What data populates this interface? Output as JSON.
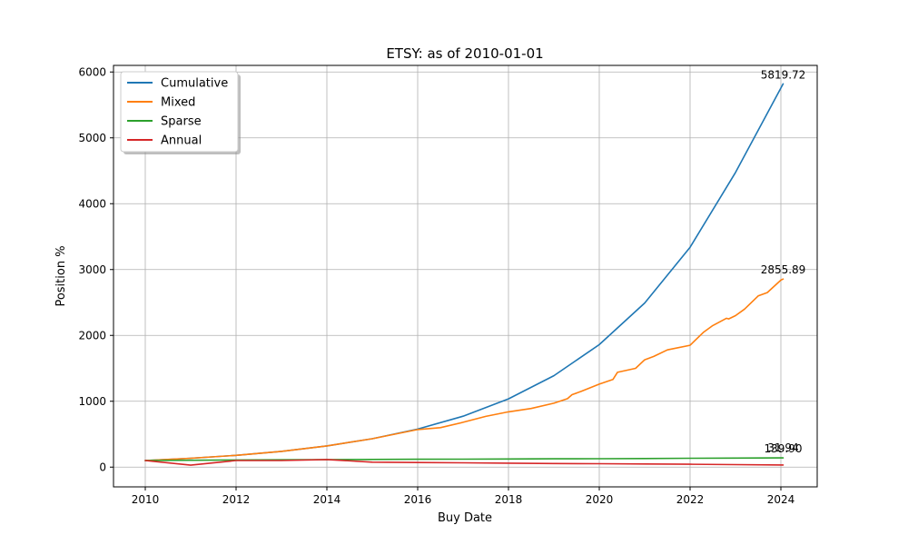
{
  "chart_data": {
    "type": "line",
    "title": "ETSY: as of 2010-01-01",
    "xlabel": "Buy Date",
    "ylabel": "Position %",
    "xlim": [
      2009.3,
      2024.8
    ],
    "ylim": [
      -300,
      6100
    ],
    "xticks": [
      2010,
      2012,
      2014,
      2016,
      2018,
      2020,
      2022,
      2024
    ],
    "yticks": [
      0,
      1000,
      2000,
      3000,
      4000,
      5000,
      6000
    ],
    "grid": true,
    "legend_position": "upper-left",
    "series": [
      {
        "name": "Cumulative",
        "color": "#1f77b4",
        "x": [
          2010,
          2011,
          2012,
          2013,
          2014,
          2015,
          2016,
          2017,
          2018,
          2019,
          2020,
          2021,
          2022,
          2023,
          2024.05
        ],
        "y": [
          100,
          134,
          179,
          240,
          322,
          431,
          577,
          773,
          1036,
          1388,
          1860,
          2492,
          3339,
          4474,
          5819.72
        ],
        "end_label": "5819.72"
      },
      {
        "name": "Mixed",
        "color": "#ff7f0e",
        "x": [
          2010,
          2011,
          2012,
          2013,
          2014,
          2015,
          2016,
          2016.5,
          2017,
          2017.5,
          2018,
          2018.5,
          2019,
          2019.3,
          2019.4,
          2019.6,
          2020,
          2020.3,
          2020.4,
          2020.8,
          2021,
          2021.2,
          2021.5,
          2022,
          2022.3,
          2022.5,
          2022.8,
          2022.85,
          2023,
          2023.2,
          2023.5,
          2023.7,
          2024,
          2024.05
        ],
        "y": [
          100,
          134,
          179,
          240,
          322,
          431,
          570,
          600,
          680,
          770,
          840,
          890,
          970,
          1040,
          1100,
          1150,
          1260,
          1330,
          1440,
          1500,
          1630,
          1680,
          1780,
          1850,
          2050,
          2150,
          2260,
          2250,
          2300,
          2400,
          2600,
          2650,
          2840,
          2855.89
        ],
        "end_label": "2855.89"
      },
      {
        "name": "Sparse",
        "color": "#2ca02c",
        "x": [
          2010,
          2011,
          2012,
          2013,
          2014,
          2015,
          2016,
          2017,
          2018,
          2019,
          2020,
          2021,
          2022,
          2023,
          2024.05
        ],
        "y": [
          100,
          104,
          108,
          111,
          114,
          117,
          119,
          121,
          123,
          126,
          128,
          131,
          134,
          137,
          139.9
        ],
        "end_label": "139.90"
      },
      {
        "name": "Annual",
        "color": "#d62728",
        "x": [
          2010,
          2011,
          2012,
          2013,
          2014,
          2015,
          2016,
          2017,
          2018,
          2019,
          2020,
          2021,
          2022,
          2023,
          2024.05
        ],
        "y": [
          100,
          30,
          100,
          100,
          115,
          75,
          70,
          65,
          60,
          55,
          52,
          48,
          44,
          38,
          31.94
        ],
        "end_label": "31.94"
      }
    ]
  }
}
